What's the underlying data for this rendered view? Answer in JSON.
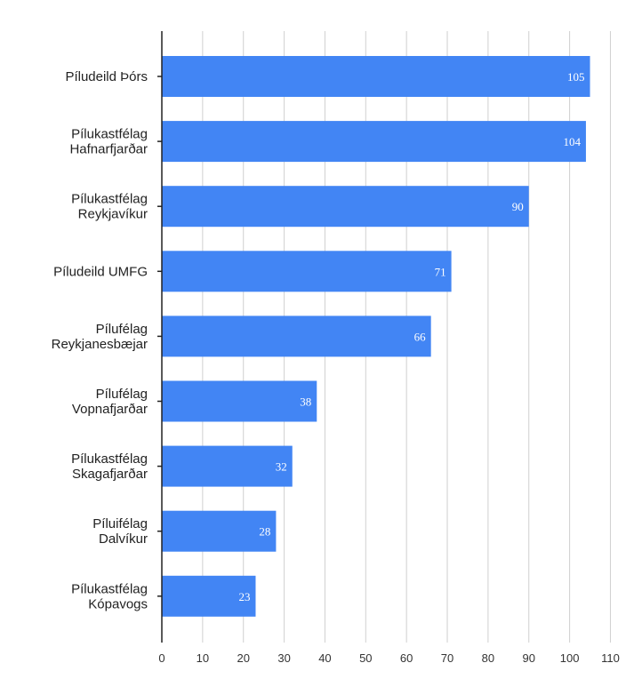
{
  "chart_data": {
    "type": "bar",
    "orientation": "horizontal",
    "categories": [
      [
        "Píludeild Þórs"
      ],
      [
        "Pílukastfélag",
        "Hafnarfjarðar"
      ],
      [
        "Pílukastfélag",
        "Reykjavíkur"
      ],
      [
        "Píludeild UMFG"
      ],
      [
        "Pílufélag",
        "Reykjanesbæjar"
      ],
      [
        "Pílufélag",
        "Vopnafjarðar"
      ],
      [
        "Pílukastfélag",
        "Skagafjarðar"
      ],
      [
        "Píluifélag",
        "Dalvíkur"
      ],
      [
        "Pílukastfélag",
        "Kópavogs"
      ]
    ],
    "values": [
      105,
      104,
      90,
      71,
      66,
      38,
      32,
      28,
      23
    ],
    "data_labels": [
      "105",
      "104",
      "90",
      "71",
      "66",
      "38",
      "32",
      "28",
      "23"
    ],
    "xlim": [
      0,
      110
    ],
    "x_ticks": [
      "0",
      "10",
      "20",
      "30",
      "40",
      "50",
      "60",
      "70",
      "80",
      "90",
      "100",
      "110"
    ],
    "grid": true,
    "legend": "none",
    "title": "",
    "xlabel": "",
    "ylabel": "",
    "bar_color": "#4285f4"
  }
}
